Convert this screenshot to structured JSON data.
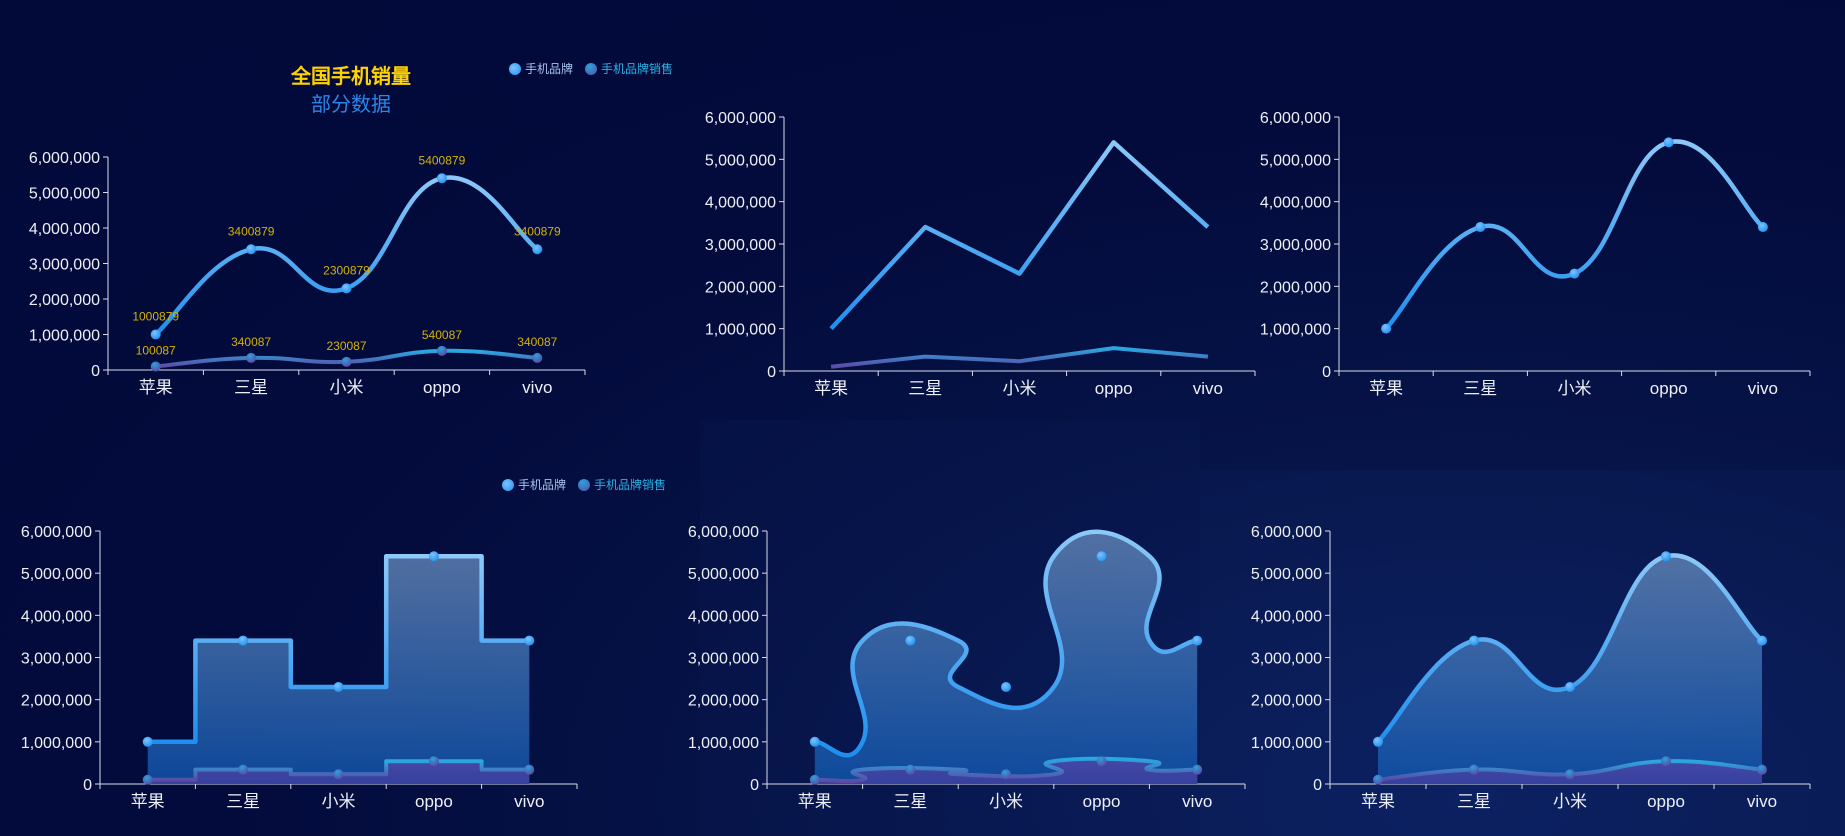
{
  "title": "全国手机销量",
  "subtitle": "部分数据",
  "legend": [
    {
      "label": "手机品牌",
      "color": "#1e8fef"
    },
    {
      "label": "手机品牌销售",
      "color": "#5b4ba6"
    }
  ],
  "colors": {
    "series1": "#1e8fef",
    "series1_top": "#7ec0f5",
    "series2": "#5b4ba6",
    "label": "#d4b106",
    "axis": "#e6e9f5"
  },
  "chart_data": [
    {
      "type": "line",
      "style": "smooth",
      "show_labels": true,
      "categories": [
        "苹果",
        "三星",
        "小米",
        "oppo",
        "vivo"
      ],
      "ylim": [
        0,
        6000000
      ],
      "yticks": [
        0,
        1000000,
        2000000,
        3000000,
        4000000,
        5000000,
        6000000
      ],
      "series": [
        {
          "name": "手机品牌",
          "values": [
            1000879,
            3400879,
            2300879,
            5400879,
            3400879
          ]
        },
        {
          "name": "手机品牌销售",
          "values": [
            100087,
            340087,
            230087,
            540087,
            340087
          ]
        }
      ]
    },
    {
      "type": "line",
      "style": "straight",
      "show_labels": false,
      "categories": [
        "苹果",
        "三星",
        "小米",
        "oppo",
        "vivo"
      ],
      "ylim": [
        0,
        6000000
      ],
      "yticks": [
        0,
        1000000,
        2000000,
        3000000,
        4000000,
        5000000,
        6000000
      ],
      "series": [
        {
          "name": "手机品牌",
          "values": [
            1000879,
            3400879,
            2300879,
            5400879,
            3400879
          ]
        },
        {
          "name": "手机品牌销售",
          "values": [
            100087,
            340087,
            230087,
            540087,
            340087
          ]
        }
      ]
    },
    {
      "type": "line",
      "style": "smooth-markers-single",
      "show_labels": false,
      "categories": [
        "苹果",
        "三星",
        "小米",
        "oppo",
        "vivo"
      ],
      "ylim": [
        0,
        6000000
      ],
      "yticks": [
        0,
        1000000,
        2000000,
        3000000,
        4000000,
        5000000,
        6000000
      ],
      "series": [
        {
          "name": "手机品牌",
          "values": [
            1000879,
            3400879,
            2300879,
            5400879,
            3400879
          ]
        }
      ]
    },
    {
      "type": "area",
      "style": "step",
      "show_labels": false,
      "categories": [
        "苹果",
        "三星",
        "小米",
        "oppo",
        "vivo"
      ],
      "ylim": [
        0,
        6000000
      ],
      "yticks": [
        0,
        1000000,
        2000000,
        3000000,
        4000000,
        5000000,
        6000000
      ],
      "series": [
        {
          "name": "手机品牌",
          "values": [
            1000879,
            3400879,
            2300879,
            5400879,
            3400879
          ]
        },
        {
          "name": "手机品牌销售",
          "values": [
            100087,
            340087,
            230087,
            540087,
            340087
          ]
        }
      ]
    },
    {
      "type": "area",
      "style": "smooth-step",
      "show_labels": false,
      "categories": [
        "苹果",
        "三星",
        "小米",
        "oppo",
        "vivo"
      ],
      "ylim": [
        0,
        6000000
      ],
      "yticks": [
        0,
        1000000,
        2000000,
        3000000,
        4000000,
        5000000,
        6000000
      ],
      "series": [
        {
          "name": "手机品牌",
          "values": [
            1000879,
            3400879,
            2300879,
            5400879,
            3400879
          ]
        },
        {
          "name": "手机品牌销售",
          "values": [
            100087,
            340087,
            230087,
            540087,
            340087
          ]
        }
      ]
    },
    {
      "type": "area",
      "style": "smooth",
      "show_labels": false,
      "categories": [
        "苹果",
        "三星",
        "小米",
        "oppo",
        "vivo"
      ],
      "ylim": [
        0,
        6000000
      ],
      "yticks": [
        0,
        1000000,
        2000000,
        3000000,
        4000000,
        5000000,
        6000000
      ],
      "series": [
        {
          "name": "手机品牌",
          "values": [
            1000879,
            3400879,
            2300879,
            5400879,
            3400879
          ]
        },
        {
          "name": "手机品牌销售",
          "values": [
            100087,
            340087,
            230087,
            540087,
            340087
          ]
        }
      ]
    }
  ]
}
